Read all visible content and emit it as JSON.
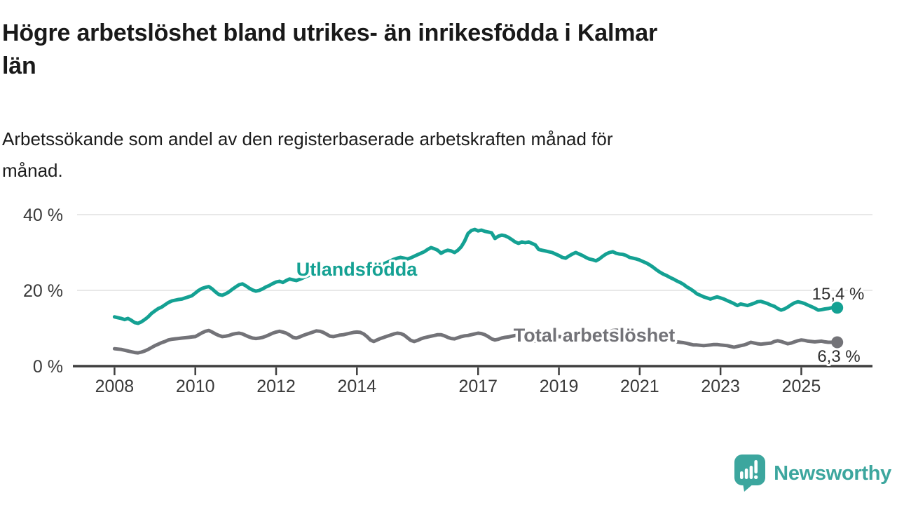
{
  "header": {
    "title_lines": [
      "Högre arbetslöshet bland utrikes- än inrikesfödda i Kalmar",
      "län"
    ],
    "subtitle_lines": [
      "Arbetssökande som andel av den registerbaserade arbetskraften månad för",
      "månad."
    ]
  },
  "chart_data": {
    "type": "line",
    "title": "Högre arbetslöshet bland utrikes- än inrikesfödda i Kalmar län",
    "subtitle": "Arbetssökande som andel av den registerbaserade arbetskraften månad för månad.",
    "unit": "%",
    "grid": "horizontal-only",
    "grid_color": "#d9d9d9",
    "axis_color": "#3f3f3f",
    "text_color": "#3a3a3a",
    "value_label_color": "#2e2e2e",
    "x_start_year": 2008,
    "points_per_year": 12,
    "x_range_years": [
      2008,
      2025.75
    ],
    "ylim": [
      0,
      40
    ],
    "x_axis": {
      "ticks": [
        {
          "year": 2008,
          "label": "2008"
        },
        {
          "year": 2010,
          "label": "2010"
        },
        {
          "year": 2012,
          "label": "2012"
        },
        {
          "year": 2014,
          "label": "2014"
        },
        {
          "year": 2017,
          "label": "2017"
        },
        {
          "year": 2019,
          "label": "2019"
        },
        {
          "year": 2021,
          "label": "2021"
        },
        {
          "year": 2023,
          "label": "2023"
        },
        {
          "year": 2025,
          "label": "2025"
        }
      ]
    },
    "y_axis": {
      "ticks": [
        {
          "value": 0,
          "label": "0 %"
        },
        {
          "value": 20,
          "label": "20 %"
        },
        {
          "value": 40,
          "label": "40 %"
        }
      ]
    },
    "legend_position": "inline-labels-on-lines",
    "series": [
      {
        "name": "Utlandsfödda",
        "color": "#14a193",
        "end_label": "15,4 %",
        "end_value": 15.4,
        "values": [
          13.0,
          12.8,
          12.6,
          12.3,
          12.6,
          12.1,
          11.5,
          11.3,
          11.7,
          12.3,
          13.0,
          13.9,
          14.6,
          15.2,
          15.6,
          16.2,
          16.8,
          17.2,
          17.4,
          17.6,
          17.7,
          18.0,
          18.3,
          18.6,
          19.3,
          20.0,
          20.5,
          20.8,
          21.0,
          20.4,
          19.6,
          18.9,
          18.7,
          19.1,
          19.6,
          20.3,
          20.9,
          21.5,
          21.7,
          21.2,
          20.6,
          20.1,
          19.8,
          20.0,
          20.4,
          20.9,
          21.3,
          21.8,
          22.2,
          22.4,
          22.1,
          22.6,
          23.0,
          22.8,
          22.6,
          22.9,
          23.3,
          23.7,
          24.0,
          24.4,
          24.7,
          24.9,
          24.6,
          24.3,
          24.1,
          24.0,
          24.2,
          24.5,
          24.9,
          25.3,
          25.6,
          25.9,
          26.2,
          26.4,
          26.2,
          25.9,
          25.7,
          25.8,
          26.1,
          26.5,
          27.0,
          27.4,
          27.8,
          28.2,
          28.5,
          28.7,
          28.5,
          28.3,
          28.6,
          29.0,
          29.4,
          29.8,
          30.2,
          30.8,
          31.3,
          31.0,
          30.6,
          29.8,
          30.3,
          30.6,
          30.4,
          30.0,
          30.6,
          31.5,
          33.0,
          35.0,
          35.8,
          36.1,
          35.7,
          35.9,
          35.6,
          35.4,
          35.2,
          33.7,
          34.3,
          34.6,
          34.4,
          34.0,
          33.4,
          32.8,
          32.4,
          32.8,
          32.6,
          32.8,
          32.4,
          32.0,
          30.8,
          30.6,
          30.4,
          30.2,
          30.0,
          29.6,
          29.2,
          28.7,
          28.5,
          29.1,
          29.6,
          30.0,
          29.6,
          29.2,
          28.7,
          28.3,
          28.1,
          27.8,
          28.3,
          29.0,
          29.6,
          30.0,
          30.2,
          29.8,
          29.6,
          29.5,
          29.2,
          28.7,
          28.5,
          28.3,
          28.0,
          27.6,
          27.2,
          26.7,
          26.1,
          25.4,
          24.8,
          24.3,
          23.9,
          23.4,
          23.0,
          22.5,
          22.1,
          21.6,
          20.9,
          20.4,
          19.8,
          19.1,
          18.7,
          18.3,
          18.0,
          17.7,
          18.0,
          18.3,
          18.0,
          17.7,
          17.3,
          16.9,
          16.5,
          16.0,
          16.4,
          16.2,
          16.0,
          16.3,
          16.6,
          17.0,
          17.1,
          16.8,
          16.5,
          16.1,
          15.8,
          15.2,
          14.8,
          15.1,
          15.6,
          16.2,
          16.7,
          17.0,
          16.8,
          16.5,
          16.1,
          15.7,
          15.3,
          14.8,
          14.9,
          15.1,
          15.2,
          15.4
        ]
      },
      {
        "name": "Total arbetslöshet",
        "color": "#737378",
        "end_label": "6,3 %",
        "end_value": 6.3,
        "values": [
          4.6,
          4.5,
          4.4,
          4.2,
          4.0,
          3.8,
          3.6,
          3.5,
          3.7,
          4.0,
          4.4,
          4.9,
          5.4,
          5.8,
          6.2,
          6.5,
          6.9,
          7.1,
          7.2,
          7.3,
          7.4,
          7.5,
          7.6,
          7.7,
          7.8,
          8.3,
          8.8,
          9.2,
          9.4,
          9.0,
          8.5,
          8.1,
          7.8,
          7.9,
          8.1,
          8.4,
          8.6,
          8.7,
          8.5,
          8.1,
          7.7,
          7.4,
          7.3,
          7.4,
          7.6,
          7.9,
          8.3,
          8.7,
          9.0,
          9.2,
          9.0,
          8.7,
          8.2,
          7.6,
          7.4,
          7.7,
          8.1,
          8.4,
          8.7,
          9.0,
          9.3,
          9.2,
          8.9,
          8.4,
          7.9,
          7.8,
          8.0,
          8.2,
          8.3,
          8.5,
          8.7,
          8.9,
          9.0,
          8.9,
          8.5,
          7.8,
          6.9,
          6.5,
          6.9,
          7.3,
          7.6,
          7.9,
          8.2,
          8.5,
          8.7,
          8.6,
          8.2,
          7.5,
          6.8,
          6.5,
          6.8,
          7.2,
          7.5,
          7.7,
          7.9,
          8.1,
          8.3,
          8.3,
          8.0,
          7.6,
          7.3,
          7.2,
          7.5,
          7.8,
          8.0,
          8.1,
          8.3,
          8.5,
          8.7,
          8.6,
          8.3,
          7.8,
          7.2,
          6.9,
          7.1,
          7.4,
          7.6,
          7.7,
          7.9,
          8.1,
          8.2,
          8.1,
          7.8,
          7.3,
          6.9,
          6.6,
          6.8,
          7.0,
          7.2,
          7.3,
          7.5,
          7.7,
          7.8,
          7.7,
          7.5,
          7.1,
          6.8,
          6.8,
          7.0,
          7.1,
          7.2,
          7.3,
          7.4,
          7.6,
          7.8,
          7.9,
          8.3,
          9.0,
          9.4,
          9.5,
          9.4,
          9.2,
          9.0,
          8.8,
          8.7,
          8.8,
          8.9,
          8.8,
          8.6,
          8.3,
          7.9,
          7.5,
          7.3,
          7.1,
          6.9,
          6.7,
          6.5,
          6.4,
          6.3,
          6.2,
          6.0,
          5.8,
          5.6,
          5.6,
          5.5,
          5.4,
          5.5,
          5.6,
          5.7,
          5.7,
          5.6,
          5.5,
          5.4,
          5.2,
          5.0,
          5.2,
          5.4,
          5.6,
          5.9,
          6.3,
          6.1,
          5.9,
          5.8,
          5.9,
          6.0,
          6.1,
          6.5,
          6.7,
          6.5,
          6.2,
          5.9,
          6.1,
          6.4,
          6.7,
          6.9,
          6.8,
          6.6,
          6.5,
          6.4,
          6.5,
          6.6,
          6.4,
          6.3,
          6.3
        ]
      }
    ]
  },
  "footer": {
    "brand": "Newsworthy",
    "brand_color": "#3ca69e",
    "logo_icon": "speech-bubble-with-bar-chart-and-exclamation"
  }
}
